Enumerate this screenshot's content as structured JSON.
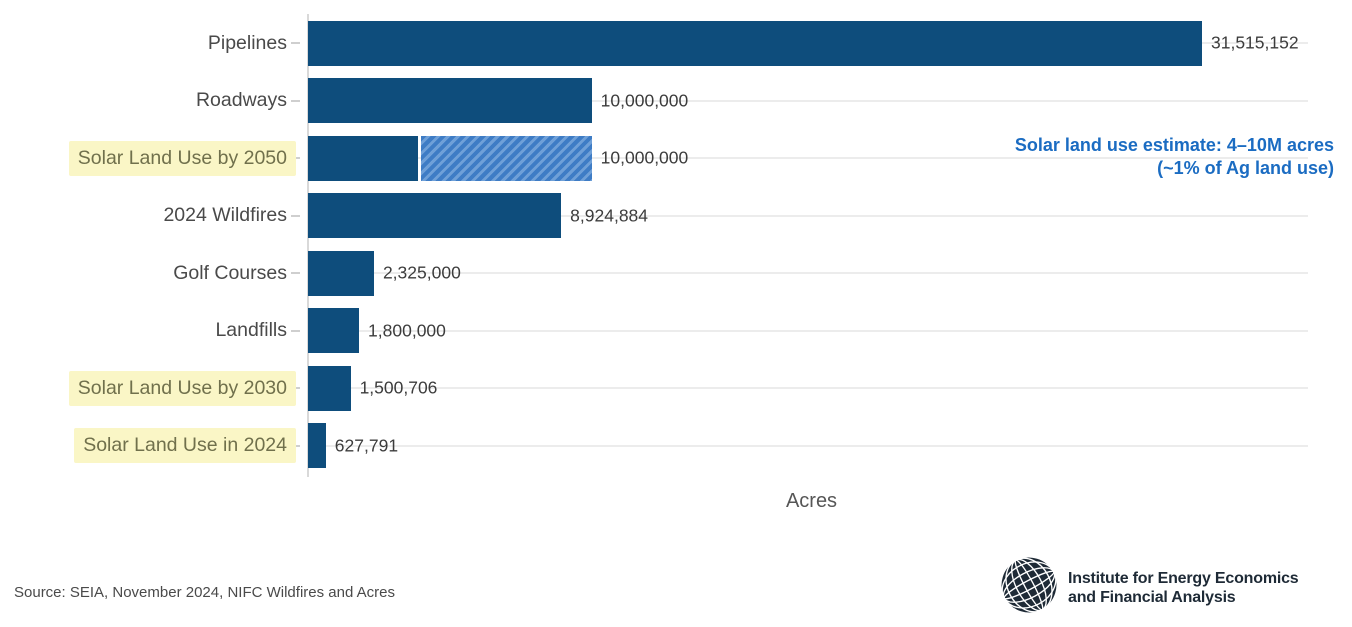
{
  "chart_data": {
    "type": "bar",
    "orientation": "horizontal",
    "title": "",
    "xlabel": "Acres",
    "ylabel": "",
    "xlim": [
      0,
      31515152
    ],
    "grid": "horizontal-per-category",
    "bars": [
      {
        "label": "Pipelines",
        "value": 31515152,
        "value_label": "31,515,152",
        "highlighted": false
      },
      {
        "label": "Roadways",
        "value": 10000000,
        "value_label": "10,000,000",
        "highlighted": false
      },
      {
        "label": "Solar Land Use by 2050",
        "value": 10000000,
        "value_label": "10,000,000",
        "highlighted": true,
        "hatched": true,
        "solid_value": 4000000
      },
      {
        "label": "2024 Wildfires",
        "value": 8924884,
        "value_label": "8,924,884",
        "highlighted": false
      },
      {
        "label": "Golf Courses",
        "value": 2325000,
        "value_label": "2,325,000",
        "highlighted": false
      },
      {
        "label": "Landfills",
        "value": 1800000,
        "value_label": "1,800,000",
        "highlighted": false
      },
      {
        "label": "Solar Land Use by 2030",
        "value": 1500706,
        "value_label": "1,500,706",
        "highlighted": true
      },
      {
        "label": "Solar Land Use in 2024",
        "value": 627791,
        "value_label": "627,791",
        "highlighted": true
      }
    ],
    "annotation": "Solar land use estimate: 4–10M acres (~1% of Ag land use)"
  },
  "annotation": {
    "line1": "Solar land use estimate: 4–10M acres",
    "line2": "(~1% of Ag land use)"
  },
  "footer": {
    "source": "Source: SEIA, November 2024, NIFC Wildfires and Acres",
    "logo_line1": "Institute for Energy Economics",
    "logo_line2": "and Financial Analysis"
  },
  "colors": {
    "bar_solid": "#0e4d7c",
    "hatch_base": "#3e7cc5",
    "hatch_stripe": "#6fa0d8",
    "highlight_bg": "#faf6c6",
    "highlight_text": "#70704c",
    "label_text": "#4a4a4a",
    "value_text": "#3c3c3c",
    "annotation_blue": "#1b6cc2",
    "gridline": "#ececec",
    "logo_dark": "#1e2a36"
  }
}
